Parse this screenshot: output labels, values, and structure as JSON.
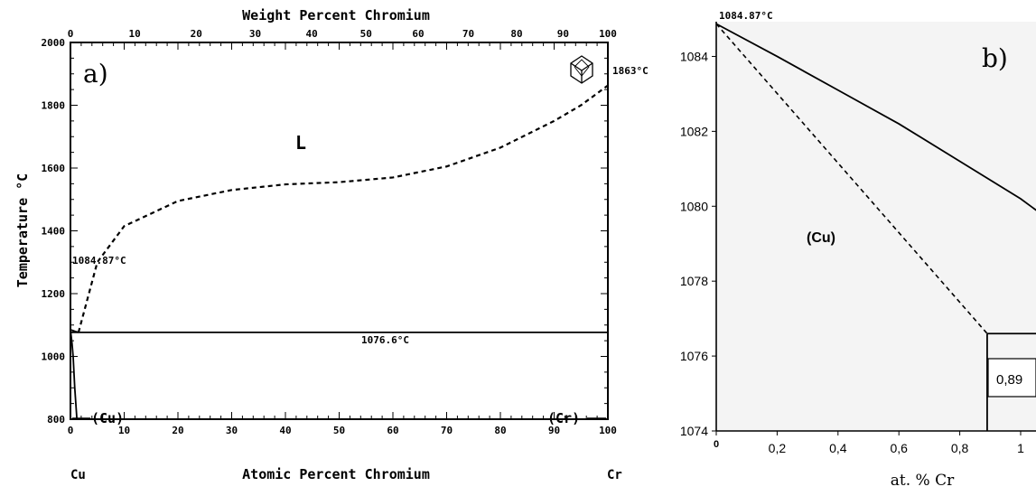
{
  "chart_data": [
    {
      "type": "line",
      "panel_label": "a)",
      "title": "Weight Percent Chromium",
      "xlabel": "Atomic Percent Chromium",
      "ylabel": "Temperature °C",
      "xlim": [
        0,
        100
      ],
      "ylim": [
        800,
        2000
      ],
      "x_ticks": [
        "0",
        "10",
        "20",
        "30",
        "40",
        "50",
        "60",
        "70",
        "80",
        "90",
        "100"
      ],
      "y_ticks": [
        "800",
        "1000",
        "1200",
        "1400",
        "1600",
        "1800",
        "2000"
      ],
      "top_ticks": [
        "0",
        "10",
        "20",
        "30",
        "40",
        "50",
        "60",
        "70",
        "80",
        "90",
        "100"
      ],
      "left_element": "Cu",
      "right_element": "Cr",
      "annotations": {
        "liquid": "L",
        "cu_melting": "1084.87°C",
        "cr_melting": "1863°C",
        "eutectic": "1076.6°C",
        "cu_phase": "(Cu)",
        "cr_phase": "(Cr)"
      },
      "series": [
        {
          "style": "dashed",
          "x": [
            1.5,
            5,
            10,
            20,
            30,
            40,
            50,
            60,
            70,
            80,
            90,
            95,
            100
          ],
          "y": [
            1076.6,
            1300,
            1415,
            1495,
            1530,
            1548,
            1555,
            1570,
            1605,
            1665,
            1750,
            1800,
            1863
          ]
        },
        {
          "style": "solid",
          "x": [
            0,
            0.5,
            1,
            1.5
          ],
          "y": [
            1084.87,
            1082,
            1079,
            1076.6
          ]
        },
        {
          "style": "solid",
          "x": [
            0,
            10,
            20,
            30,
            40,
            50,
            60,
            70,
            80,
            90,
            100
          ],
          "y": [
            1076.6,
            1076.6,
            1076.6,
            1076.6,
            1076.6,
            1076.6,
            1076.6,
            1076.6,
            1076.6,
            1076.6,
            1076.6
          ]
        },
        {
          "style": "solid",
          "x": [
            0,
            0.3,
            0.5,
            0.8,
            1.2
          ],
          "y": [
            1084.87,
            1040,
            1000,
            900,
            800
          ]
        }
      ]
    },
    {
      "type": "line",
      "panel_label": "b)",
      "xlabel": "at. % Cr",
      "ylabel": "",
      "xlim": [
        0,
        1.1
      ],
      "ylim": [
        1074,
        1085
      ],
      "x_ticks": [
        "0",
        "0,2",
        "0,4",
        "0,6",
        "0,8",
        "1"
      ],
      "y_ticks": [
        "1074",
        "1076",
        "1078",
        "1080",
        "1082",
        "1084"
      ],
      "annotations": {
        "cu_melting": "1084.87°C",
        "cu_phase": "(Cu)",
        "composition_box": "0,89"
      },
      "series": [
        {
          "style": "solid",
          "x": [
            0,
            0.2,
            0.4,
            0.6,
            0.8,
            1,
            1.1
          ],
          "y": [
            1084.87,
            1084,
            1083.1,
            1082.2,
            1081.2,
            1080.2,
            1079.6
          ]
        },
        {
          "style": "dashed",
          "x": [
            0,
            0.89
          ],
          "y": [
            1084.87,
            1076.6
          ]
        },
        {
          "style": "solid",
          "x": [
            0.89,
            1.1
          ],
          "y": [
            1076.6,
            1076.6
          ]
        },
        {
          "style": "solid",
          "x": [
            0.89,
            0.89
          ],
          "y": [
            1076.6,
            1074
          ]
        }
      ]
    }
  ]
}
